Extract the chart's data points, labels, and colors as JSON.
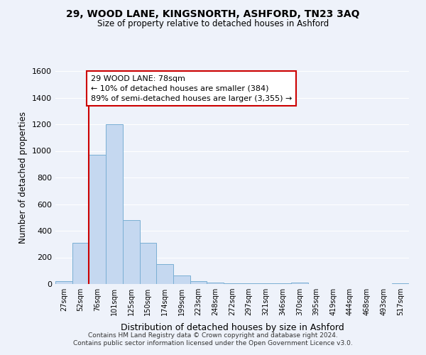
{
  "title": "29, WOOD LANE, KINGSNORTH, ASHFORD, TN23 3AQ",
  "subtitle": "Size of property relative to detached houses in Ashford",
  "xlabel": "Distribution of detached houses by size in Ashford",
  "ylabel": "Number of detached properties",
  "categories": [
    "27sqm",
    "52sqm",
    "76sqm",
    "101sqm",
    "125sqm",
    "150sqm",
    "174sqm",
    "199sqm",
    "223sqm",
    "248sqm",
    "272sqm",
    "297sqm",
    "321sqm",
    "346sqm",
    "370sqm",
    "395sqm",
    "419sqm",
    "444sqm",
    "468sqm",
    "493sqm",
    "517sqm"
  ],
  "values": [
    20,
    310,
    970,
    1200,
    480,
    310,
    150,
    65,
    20,
    10,
    8,
    5,
    5,
    3,
    10,
    2,
    2,
    2,
    2,
    2,
    8
  ],
  "bar_color": "#c5d8f0",
  "bar_edge_color": "#7aafd4",
  "vline_color": "#cc0000",
  "annotation_line1": "29 WOOD LANE: 78sqm",
  "annotation_line2": "← 10% of detached houses are smaller (384)",
  "annotation_line3": "89% of semi-detached houses are larger (3,355) →",
  "annotation_box_facecolor": "#ffffff",
  "annotation_box_edgecolor": "#cc0000",
  "ylim": [
    0,
    1600
  ],
  "yticks": [
    0,
    200,
    400,
    600,
    800,
    1000,
    1200,
    1400,
    1600
  ],
  "background_color": "#eef2fa",
  "grid_color": "#ffffff",
  "footer1": "Contains HM Land Registry data © Crown copyright and database right 2024.",
  "footer2": "Contains public sector information licensed under the Open Government Licence v3.0."
}
